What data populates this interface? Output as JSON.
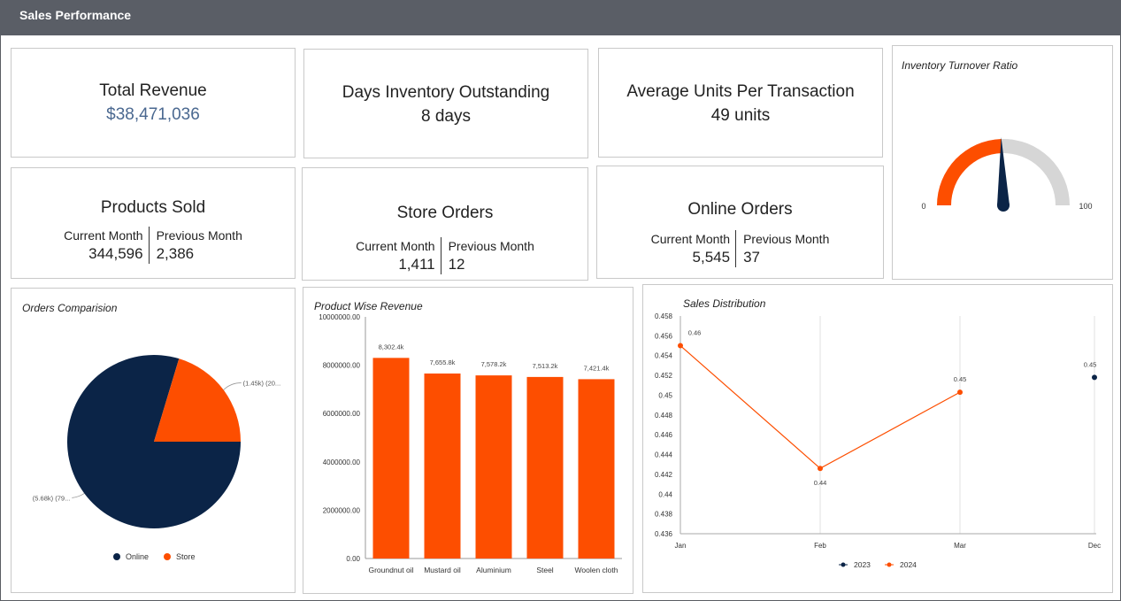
{
  "header": {
    "title": "Sales Performance"
  },
  "kpis": {
    "total_revenue": {
      "title": "Total Revenue",
      "value": "$38,471,036"
    },
    "dio": {
      "title": "Days Inventory Outstanding",
      "value": "8 days"
    },
    "aupt": {
      "title": "Average Units Per Transaction",
      "value": "49 units"
    },
    "products_sold": {
      "title": "Products Sold",
      "current_label": "Current Month",
      "current_value": "344,596",
      "previous_label": "Previous Month",
      "previous_value": "2,386"
    },
    "store_orders": {
      "title": "Store Orders",
      "current_label": "Current Month",
      "current_value": "1,411",
      "previous_label": "Previous Month",
      "previous_value": "12"
    },
    "online_orders": {
      "title": "Online Orders",
      "current_label": "Current Month",
      "current_value": "5,545",
      "previous_label": "Previous Month",
      "previous_value": "37"
    }
  },
  "colors": {
    "navy": "#0b2447",
    "orange": "#fd4e00",
    "grey": "#d6d6d6",
    "value_blue": "#4a6890"
  },
  "chart_data": [
    {
      "id": "gauge",
      "type": "gauge",
      "title": "Inventory Turnover Ratio",
      "min": 0,
      "max": 100,
      "value": 49,
      "min_label": "0",
      "max_label": "100"
    },
    {
      "id": "orders_comparison",
      "type": "pie",
      "title": "Orders Comparision",
      "slices": [
        {
          "name": "Online",
          "value": 5.68,
          "label": "(5.68k) (79..."
        },
        {
          "name": "Store",
          "value": 1.45,
          "label": "(1.45k) (20..."
        }
      ],
      "legend": [
        "Online",
        "Store"
      ],
      "legend_position": "bottom"
    },
    {
      "id": "product_revenue",
      "type": "bar",
      "title": "Product Wise Revenue",
      "categories": [
        "Groundnut oil",
        "Mustard oil",
        "Aluminium",
        "Steel",
        "Woolen cloth"
      ],
      "values": [
        8302400,
        7655800,
        7578200,
        7513200,
        7421400
      ],
      "data_labels": [
        "8,302.4k",
        "7,655.8k",
        "7,578.2k",
        "7,513.2k",
        "7,421.4k"
      ],
      "ylim": [
        0,
        10000000
      ],
      "yticks": [
        "0.00",
        "2000000.00",
        "4000000.00",
        "6000000.00",
        "8000000.00",
        "10000000.00"
      ]
    },
    {
      "id": "sales_distribution",
      "type": "line",
      "title": "Sales Distribution",
      "x": [
        "Jan",
        "Feb",
        "Mar",
        "Dec"
      ],
      "ylim": [
        0.436,
        0.458
      ],
      "yticks": [
        "0.436",
        "0.438",
        "0.44",
        "0.442",
        "0.444",
        "0.446",
        "0.448",
        "0.45",
        "0.452",
        "0.454",
        "0.456",
        "0.458"
      ],
      "series": [
        {
          "name": "2023",
          "points": [
            {
              "x": "Dec",
              "y": 0.4518,
              "label": "0.45"
            }
          ]
        },
        {
          "name": "2024",
          "points": [
            {
              "x": "Jan",
              "y": 0.455,
              "label": "0.46"
            },
            {
              "x": "Feb",
              "y": 0.4426,
              "label": "0.44"
            },
            {
              "x": "Mar",
              "y": 0.4503,
              "label": "0.45"
            }
          ]
        }
      ],
      "legend_position": "bottom"
    }
  ]
}
